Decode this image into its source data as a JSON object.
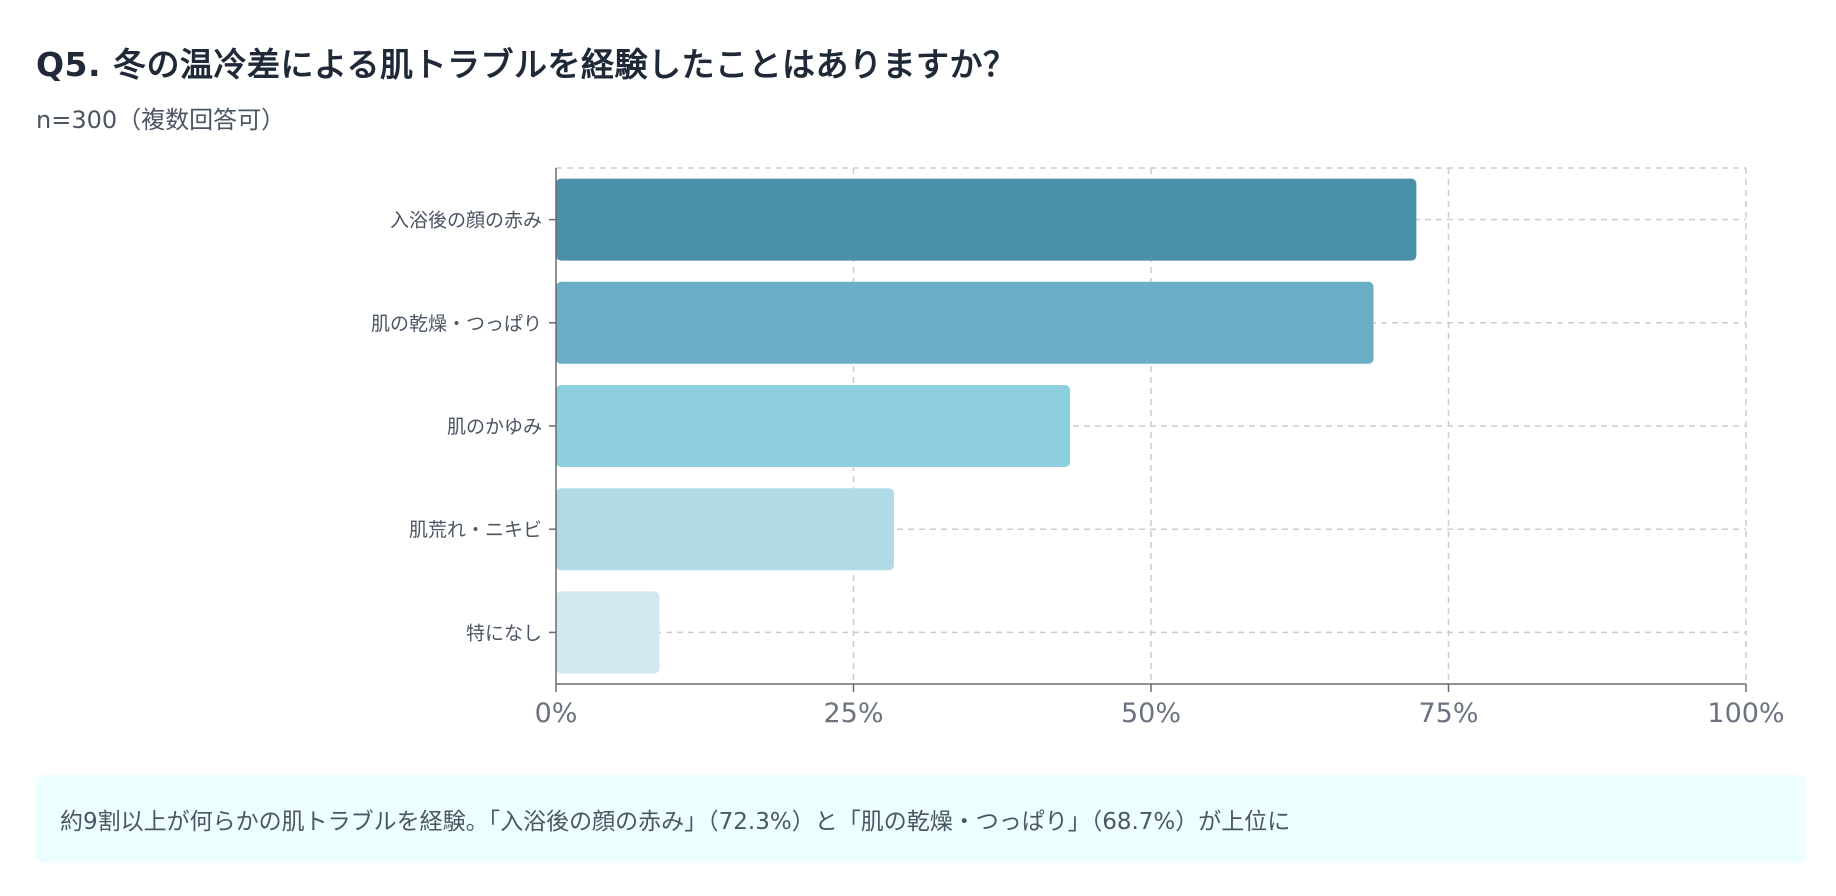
{
  "header": {
    "title": "Q5. 冬の温冷差による肌トラブルを経験したことはありますか？",
    "subtitle": "n=300（複数回答可）"
  },
  "chart_data": {
    "type": "bar",
    "orientation": "horizontal",
    "categories": [
      "入浴後の顔の赤み",
      "肌の乾燥・つっぱり",
      "肌のかゆみ",
      "肌荒れ・ニキビ",
      "特になし"
    ],
    "values": [
      72.3,
      68.7,
      43.2,
      28.4,
      8.7
    ],
    "unit": "%",
    "xlim": [
      0,
      100
    ],
    "xticks": [
      0,
      25,
      50,
      75,
      100
    ],
    "xtick_labels": [
      "0%",
      "25%",
      "50%",
      "75%",
      "100%"
    ],
    "grid": true,
    "legend": "none",
    "colors": [
      "#4a90a8",
      "#6bafc6",
      "#8dcfdf",
      "#b0dae6",
      "#d1e8f0"
    ]
  },
  "note": {
    "text": "約9割以上が何らかの肌トラブルを経験。「入浴後の顔の赤み」（72.3%）と「肌の乾燥・つっぱり」（68.7%）が上位に"
  }
}
